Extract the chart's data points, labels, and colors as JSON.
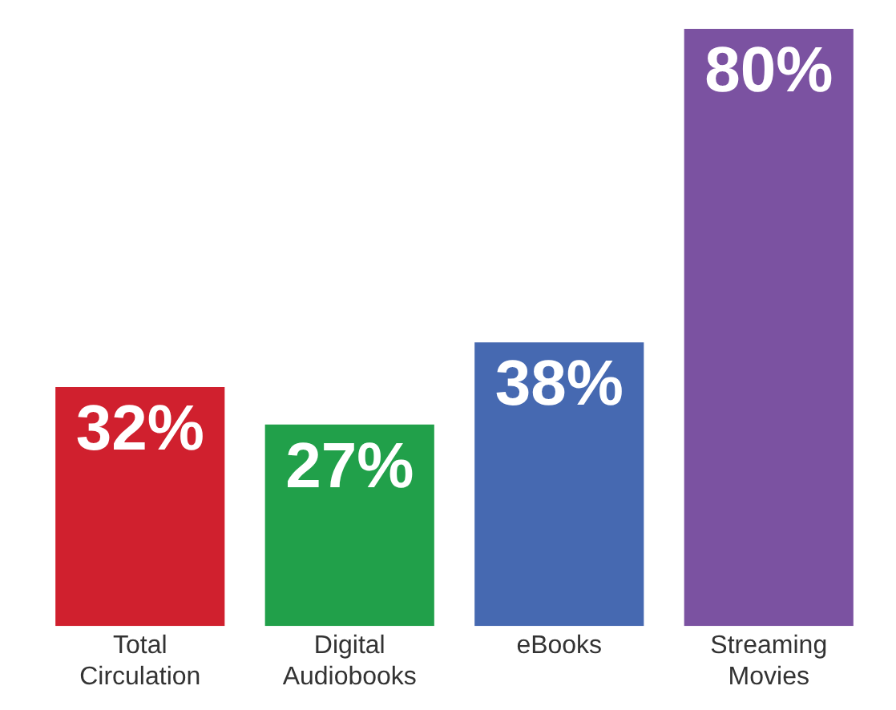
{
  "chart_data": {
    "type": "bar",
    "relative": false,
    "categories": [
      "Total Circulation",
      "Digital Audiobooks",
      "eBooks",
      "Streaming Movies"
    ],
    "values": [
      32,
      27,
      38,
      80
    ],
    "colors": [
      "#d0202e",
      "#21a04a",
      "#4669b1",
      "#7b52a1"
    ],
    "value_labels": [
      "32%",
      "27%",
      "38%",
      "80%"
    ],
    "grid": false,
    "legend": false
  }
}
